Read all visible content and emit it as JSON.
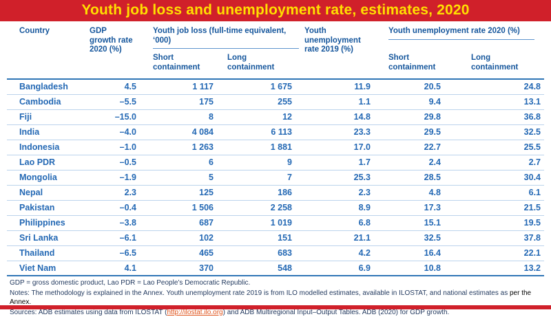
{
  "title": "Youth job loss and unemployment rate, estimates, 2020",
  "colors": {
    "banner_red": "#d0202a",
    "title_yellow": "#ffe000",
    "header_blue": "#15569c",
    "data_blue": "#2368b4",
    "rule_light_blue": "#bbd3ec",
    "rule_dark_blue": "#2e74b5",
    "link_orange": "#e0541c",
    "note_text": "#243b60"
  },
  "table": {
    "col_headers": {
      "country": "Country",
      "gdp": "GDP growth rate 2020 (%)",
      "job_loss_group": "Youth job loss (full-time equivalent, ‘000)",
      "unemp_2019": "Youth unemployment rate 2019 (%)",
      "unemp_2020_group": "Youth unemployment rate 2020 (%)",
      "short": "Short containment",
      "long": "Long containment"
    },
    "col_keys": [
      "country",
      "gdp",
      "jl_short",
      "jl_long",
      "u2019",
      "u_short",
      "u_long"
    ],
    "rows": [
      {
        "country": "Bangladesh",
        "gdp": "4.5",
        "jl_short": "1 117",
        "jl_long": "1 675",
        "u2019": "11.9",
        "u_short": "20.5",
        "u_long": "24.8"
      },
      {
        "country": "Cambodia",
        "gdp": "–5.5",
        "jl_short": "175",
        "jl_long": "255",
        "u2019": "1.1",
        "u_short": "9.4",
        "u_long": "13.1"
      },
      {
        "country": "Fiji",
        "gdp": "–15.0",
        "jl_short": "8",
        "jl_long": "12",
        "u2019": "14.8",
        "u_short": "29.8",
        "u_long": "36.8"
      },
      {
        "country": "India",
        "gdp": "–4.0",
        "jl_short": "4 084",
        "jl_long": "6 113",
        "u2019": "23.3",
        "u_short": "29.5",
        "u_long": "32.5"
      },
      {
        "country": "Indonesia",
        "gdp": "–1.0",
        "jl_short": "1 263",
        "jl_long": "1 881",
        "u2019": "17.0",
        "u_short": "22.7",
        "u_long": "25.5"
      },
      {
        "country": "Lao PDR",
        "gdp": "–0.5",
        "jl_short": "6",
        "jl_long": "9",
        "u2019": "1.7",
        "u_short": "2.4",
        "u_long": "2.7"
      },
      {
        "country": "Mongolia",
        "gdp": "–1.9",
        "jl_short": "5",
        "jl_long": "7",
        "u2019": "25.3",
        "u_short": "28.5",
        "u_long": "30.4"
      },
      {
        "country": "Nepal",
        "gdp": "2.3",
        "jl_short": "125",
        "jl_long": "186",
        "u2019": "2.3",
        "u_short": "4.8",
        "u_long": "6.1"
      },
      {
        "country": "Pakistan",
        "gdp": "–0.4",
        "jl_short": "1 506",
        "jl_long": "2 258",
        "u2019": "8.9",
        "u_short": "17.3",
        "u_long": "21.5"
      },
      {
        "country": "Philippines",
        "gdp": "–3.8",
        "jl_short": "687",
        "jl_long": "1 019",
        "u2019": "6.8",
        "u_short": "15.1",
        "u_long": "19.5"
      },
      {
        "country": "Sri Lanka",
        "gdp": "–6.1",
        "jl_short": "102",
        "jl_long": "151",
        "u2019": "21.1",
        "u_short": "32.5",
        "u_long": "37.8"
      },
      {
        "country": "Thailand",
        "gdp": "–6.5",
        "jl_short": "465",
        "jl_long": "683",
        "u2019": "4.2",
        "u_short": "16.4",
        "u_long": "22.1"
      },
      {
        "country": "Viet Nam",
        "gdp": "4.1",
        "jl_short": "370",
        "jl_long": "548",
        "u2019": "6.9",
        "u_short": "10.8",
        "u_long": "13.2"
      }
    ]
  },
  "footnotes": {
    "abbrev": "GDP = gross domestic product, Lao PDR = Lao People’s Democratic Republic.",
    "notes_prefix": "Notes: The methodology is explained in the Annex. Youth unemployment rate 2019 is from ILO modelled estimates, available in ILOSTAT, and national estimates as ",
    "notes_emph": "per the Annex.",
    "sources_prefix": "Sources: ADB estimates using data from ILOSTAT (",
    "sources_link": "http://ilostat.ilo.org",
    "sources_suffix": ") and ADB Multiregional Input–Output Tables. ADB (2020) for GDP growth."
  },
  "chart_data": {
    "type": "table",
    "title": "Youth job loss and unemployment rate, estimates, 2020",
    "columns": [
      "Country",
      "GDP growth rate 2020 (%)",
      "Youth job loss short containment ('000)",
      "Youth job loss long containment ('000)",
      "Youth unemployment rate 2019 (%)",
      "Youth unemployment rate 2020 short containment (%)",
      "Youth unemployment rate 2020 long containment (%)"
    ],
    "rows": [
      [
        "Bangladesh",
        4.5,
        1117,
        1675,
        11.9,
        20.5,
        24.8
      ],
      [
        "Cambodia",
        -5.5,
        175,
        255,
        1.1,
        9.4,
        13.1
      ],
      [
        "Fiji",
        -15.0,
        8,
        12,
        14.8,
        29.8,
        36.8
      ],
      [
        "India",
        -4.0,
        4084,
        6113,
        23.3,
        29.5,
        32.5
      ],
      [
        "Indonesia",
        -1.0,
        1263,
        1881,
        17.0,
        22.7,
        25.5
      ],
      [
        "Lao PDR",
        -0.5,
        6,
        9,
        1.7,
        2.4,
        2.7
      ],
      [
        "Mongolia",
        -1.9,
        5,
        7,
        25.3,
        28.5,
        30.4
      ],
      [
        "Nepal",
        2.3,
        125,
        186,
        2.3,
        4.8,
        6.1
      ],
      [
        "Pakistan",
        -0.4,
        1506,
        2258,
        8.9,
        17.3,
        21.5
      ],
      [
        "Philippines",
        -3.8,
        687,
        1019,
        6.8,
        15.1,
        19.5
      ],
      [
        "Sri Lanka",
        -6.1,
        102,
        151,
        21.1,
        32.5,
        37.8
      ],
      [
        "Thailand",
        -6.5,
        465,
        683,
        4.2,
        16.4,
        22.1
      ],
      [
        "Viet Nam",
        4.1,
        370,
        548,
        6.9,
        10.8,
        13.2
      ]
    ]
  }
}
